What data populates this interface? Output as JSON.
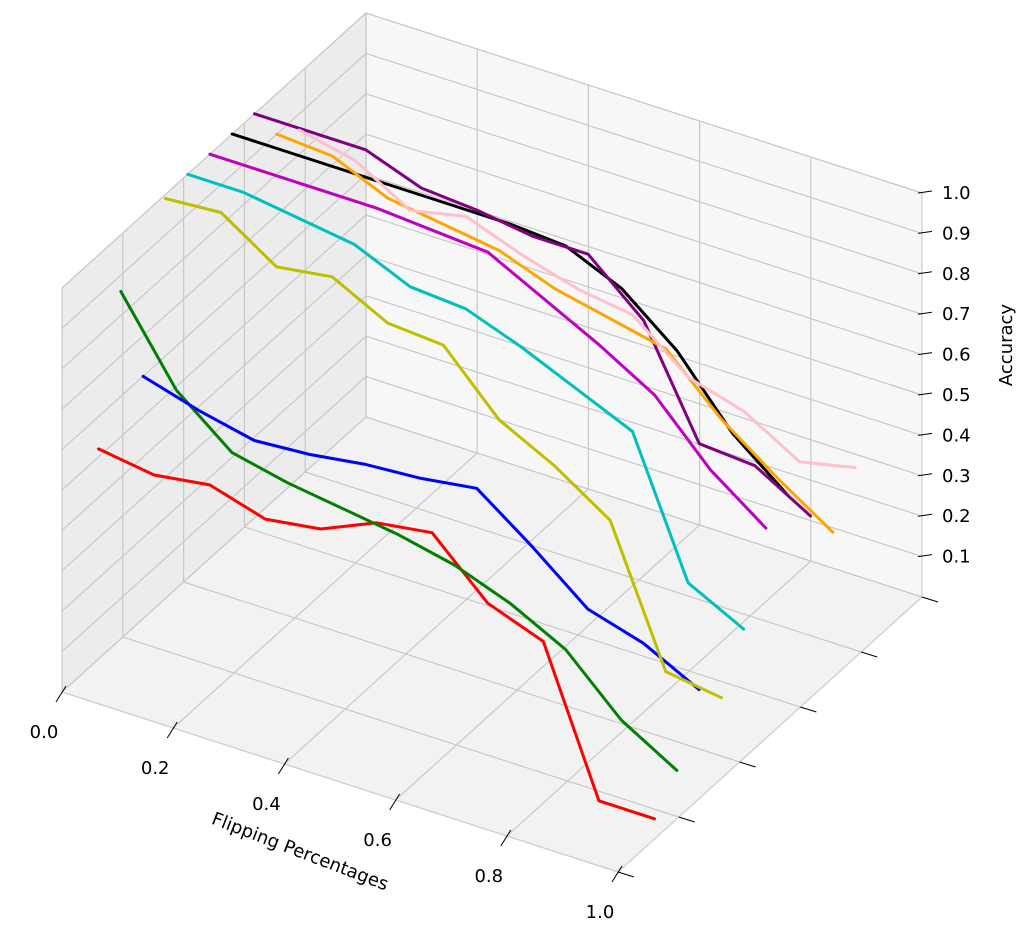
{
  "chart_data": {
    "type": "line",
    "projection": "3d",
    "x_label": "Flipping Percentages",
    "z_label": "Accuracy",
    "y_label": "",
    "x_ticks": [
      "0.0",
      "0.2",
      "0.4",
      "0.6",
      "0.8",
      "1.0"
    ],
    "z_ticks": [
      "0.1",
      "0.2",
      "0.3",
      "0.4",
      "0.5",
      "0.6",
      "0.7",
      "0.8",
      "0.9",
      "1.0"
    ],
    "x_range": [
      0,
      1
    ],
    "z_range": [
      0,
      1
    ],
    "grid": true,
    "x": [
      0.0,
      0.1,
      0.2,
      0.3,
      0.4,
      0.5,
      0.6,
      0.7,
      0.8,
      0.9,
      1.0
    ],
    "series": [
      {
        "color": "#ff0000",
        "values": [
          0.52,
          0.5,
          0.52,
          0.48,
          0.5,
          0.56,
          0.58,
          0.45,
          0.4,
          0.05,
          0.05
        ]
      },
      {
        "color": "#008000",
        "values": [
          0.86,
          0.66,
          0.55,
          0.52,
          0.5,
          0.48,
          0.45,
          0.4,
          0.33,
          0.2,
          0.12
        ]
      },
      {
        "color": "#0000ff",
        "values": [
          0.6,
          0.56,
          0.53,
          0.54,
          0.56,
          0.57,
          0.59,
          0.49,
          0.38,
          0.34,
          0.27
        ]
      },
      {
        "color": "#bfbf00",
        "values": [
          0.99,
          1.0,
          0.91,
          0.93,
          0.86,
          0.85,
          0.71,
          0.64,
          0.55,
          0.22,
          0.2
        ]
      },
      {
        "color": "#00bfbf",
        "values": [
          1.0,
          1.0,
          0.98,
          0.96,
          0.9,
          0.89,
          0.84,
          0.78,
          0.72,
          0.39,
          0.32
        ]
      },
      {
        "color": "#bf00bf",
        "values": [
          1.0,
          1.0,
          1.0,
          1.0,
          0.99,
          0.98,
          0.91,
          0.84,
          0.76,
          0.62,
          0.52
        ]
      },
      {
        "color": "#000000",
        "values": [
          1.0,
          1.0,
          1.0,
          1.0,
          1.0,
          1.0,
          0.99,
          0.93,
          0.82,
          0.66,
          0.55
        ]
      },
      {
        "color": "#800080",
        "values": [
          1.0,
          1.0,
          1.0,
          0.95,
          0.94,
          0.92,
          0.92,
          0.8,
          0.54,
          0.53,
          0.45
        ]
      },
      {
        "color": "#ffa500",
        "values": [
          0.9,
          0.89,
          0.83,
          0.81,
          0.79,
          0.74,
          0.71,
          0.68,
          0.55,
          0.45,
          0.36
        ]
      },
      {
        "color": "#ffc0cb",
        "values": [
          0.86,
          0.83,
          0.75,
          0.78,
          0.73,
          0.69,
          0.67,
          0.56,
          0.52,
          0.44,
          0.47
        ]
      }
    ]
  }
}
